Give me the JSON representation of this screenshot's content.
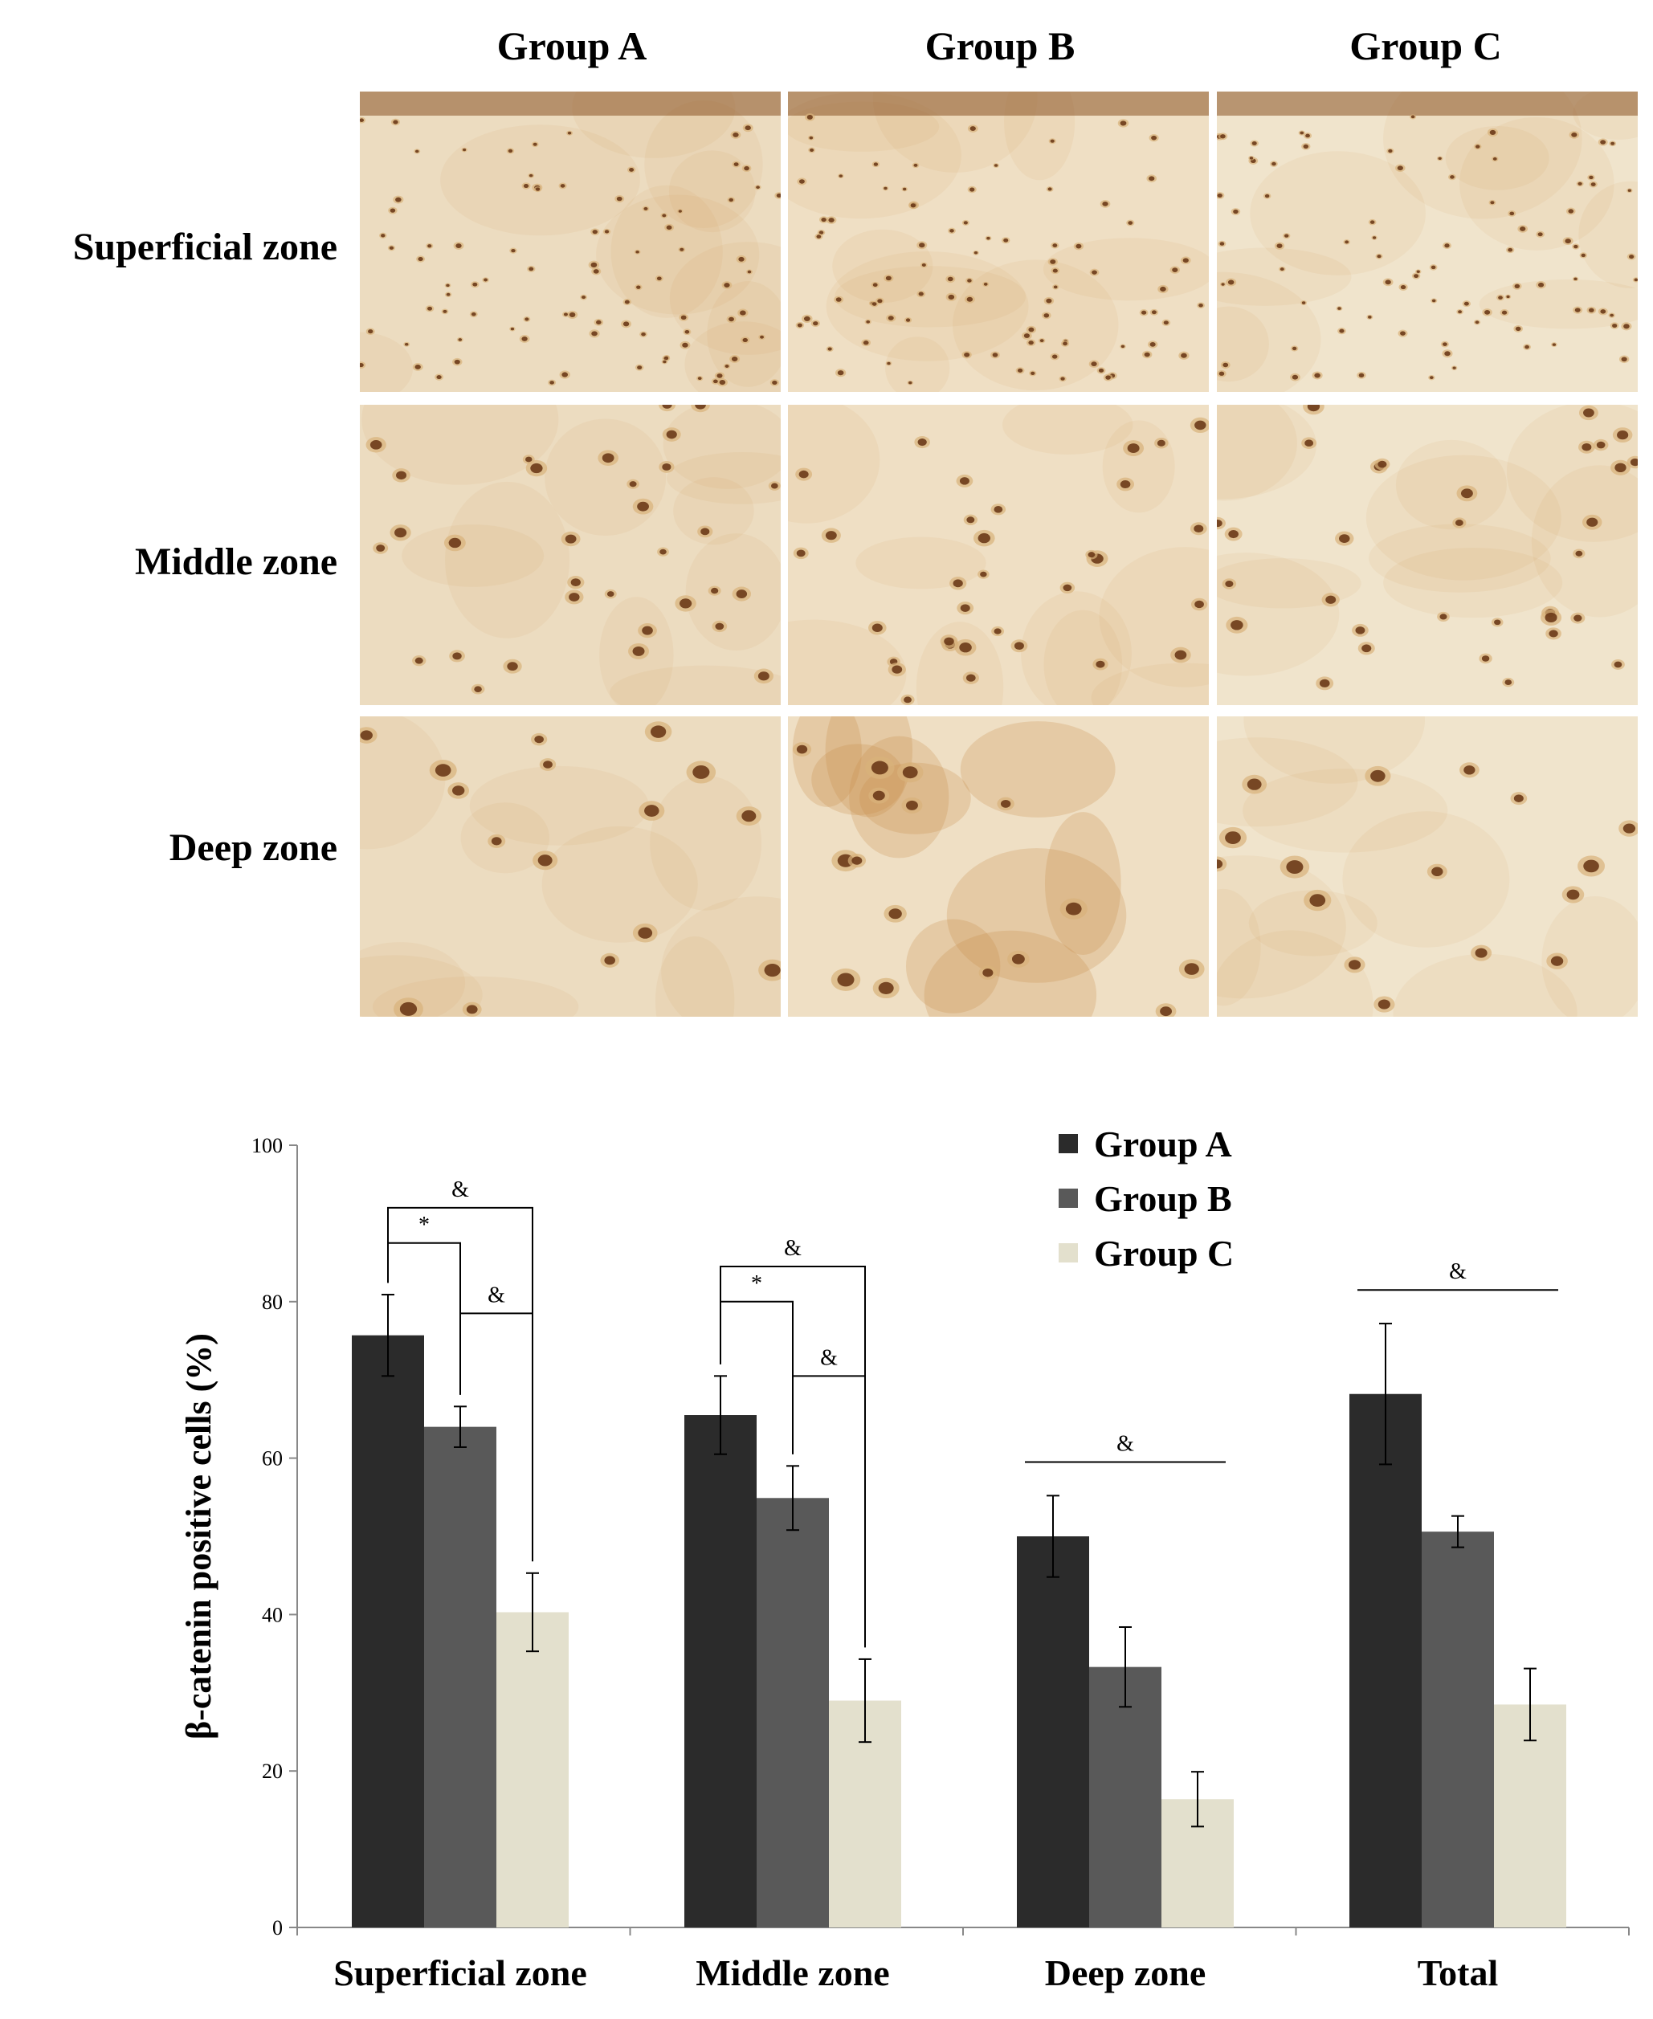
{
  "micrographs": {
    "columns": [
      "Group A",
      "Group B",
      "Group C"
    ],
    "rows": [
      "Superficial zone",
      "Middle zone",
      "Deep zone"
    ],
    "panels": [
      {
        "name": "panel-superficial-group-a",
        "density": "high",
        "stain": "dark"
      },
      {
        "name": "panel-superficial-group-b",
        "density": "high",
        "stain": "medium"
      },
      {
        "name": "panel-superficial-group-c",
        "density": "high",
        "stain": "light"
      },
      {
        "name": "panel-middle-group-a",
        "density": "medium",
        "stain": "dark"
      },
      {
        "name": "panel-middle-group-b",
        "density": "medium",
        "stain": "medium"
      },
      {
        "name": "panel-middle-group-c",
        "density": "medium",
        "stain": "light"
      },
      {
        "name": "panel-deep-group-a",
        "density": "low",
        "stain": "dark"
      },
      {
        "name": "panel-deep-group-b",
        "density": "low",
        "stain": "medium"
      },
      {
        "name": "panel-deep-group-c",
        "density": "low",
        "stain": "light"
      }
    ]
  },
  "chart_data": {
    "type": "bar",
    "title": "",
    "xlabel": "",
    "ylabel": "β-catenin positive cells (%)",
    "ylim": [
      0,
      100
    ],
    "yticks": [
      0,
      20,
      40,
      60,
      80,
      100
    ],
    "categories": [
      "Superficial zone",
      "Middle zone",
      "Deep zone",
      "Total"
    ],
    "series": [
      {
        "name": "Group A",
        "color": "#2b2b2b",
        "values": [
          75.7,
          65.5,
          50.0,
          68.2
        ],
        "errors": [
          5.2,
          5.0,
          5.2,
          9.0
        ]
      },
      {
        "name": "Group B",
        "color": "#595959",
        "values": [
          64.0,
          54.9,
          33.3,
          50.6
        ],
        "errors": [
          2.6,
          4.1,
          5.1,
          2.0
        ]
      },
      {
        "name": "Group C",
        "color": "#e3e0cd",
        "values": [
          40.3,
          29.0,
          16.4,
          28.5
        ],
        "errors": [
          5.0,
          5.3,
          3.5,
          4.6
        ]
      }
    ],
    "legend": {
      "position": "top-right"
    },
    "grid": false,
    "annotations": [
      {
        "category": "Superficial zone",
        "from": "Group A",
        "to": "Group C",
        "label": "&",
        "style": "bracket",
        "level": 92
      },
      {
        "category": "Superficial zone",
        "from": "Group A",
        "to": "Group B",
        "label": "*",
        "style": "bracket",
        "level": 87.5
      },
      {
        "category": "Superficial zone",
        "from": "Group B",
        "to": "Group C",
        "label": "&",
        "style": "bracket",
        "level": 78.5
      },
      {
        "category": "Middle zone",
        "from": "Group A",
        "to": "Group C",
        "label": "&",
        "style": "bracket",
        "level": 84.5
      },
      {
        "category": "Middle zone",
        "from": "Group A",
        "to": "Group B",
        "label": "*",
        "style": "bracket",
        "level": 80
      },
      {
        "category": "Middle zone",
        "from": "Group B",
        "to": "Group C",
        "label": "&",
        "style": "bracket",
        "level": 70.5
      },
      {
        "category": "Deep zone",
        "from": "Group A",
        "to": "Group C",
        "label": "&",
        "style": "line",
        "level": 59.5
      },
      {
        "category": "Total",
        "from": "Group A",
        "to": "Group C",
        "label": "&",
        "style": "line",
        "level": 81.5
      }
    ]
  }
}
